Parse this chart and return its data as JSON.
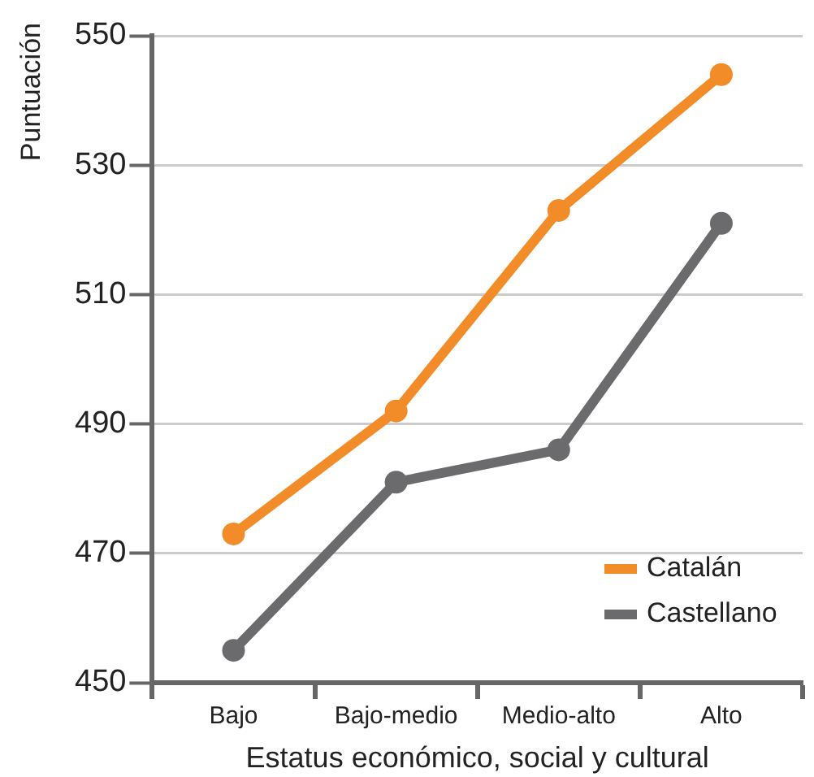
{
  "chart_data": {
    "type": "line",
    "xlabel": "Estatus económico, social y cultural",
    "ylabel": "Puntuación",
    "categories": [
      "Bajo",
      "Bajo-medio",
      "Medio-alto",
      "Alto"
    ],
    "series": [
      {
        "name": "Catalán",
        "color": "#f28c28",
        "values": [
          473,
          492,
          523,
          544
        ]
      },
      {
        "name": "Castellano",
        "color": "#6b6b6e",
        "values": [
          455,
          481,
          486,
          521
        ]
      }
    ],
    "ylim": [
      450,
      550
    ],
    "yticks": [
      450,
      470,
      490,
      510,
      530,
      550
    ],
    "grid": "y",
    "legend": "bottom right",
    "marker": "circle",
    "line_style": "solid"
  }
}
